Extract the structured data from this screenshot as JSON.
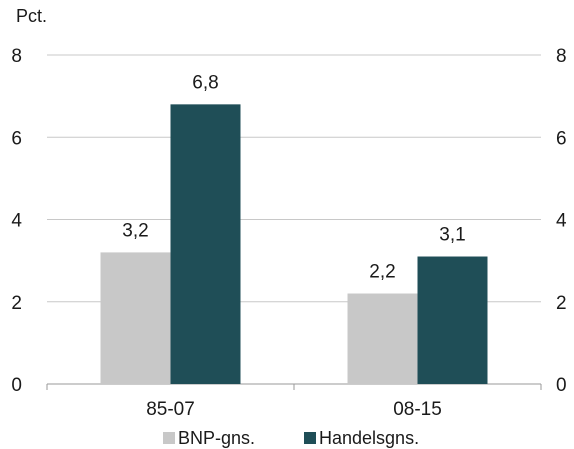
{
  "chart_data": {
    "type": "bar",
    "title": "",
    "unit_label": "Pct.",
    "xlabel": "",
    "ylabel": "",
    "categories": [
      "85-07",
      "08-15"
    ],
    "series": [
      {
        "name": "BNP-gns.",
        "values": [
          3.2,
          2.2
        ],
        "labels": [
          "3,2",
          "2,2"
        ],
        "color": "#c8c8c8"
      },
      {
        "name": "Handelsgns.",
        "values": [
          6.8,
          3.1
        ],
        "labels": [
          "6,8",
          "3,1"
        ],
        "color": "#1f4e57"
      }
    ],
    "ylim": [
      0,
      8
    ],
    "yticks": [
      0,
      2,
      4,
      6,
      8
    ],
    "ytick_labels": [
      "0",
      "2",
      "4",
      "6",
      "8"
    ],
    "secondary_axis": true,
    "grid": true,
    "legend": "bottom-center"
  }
}
